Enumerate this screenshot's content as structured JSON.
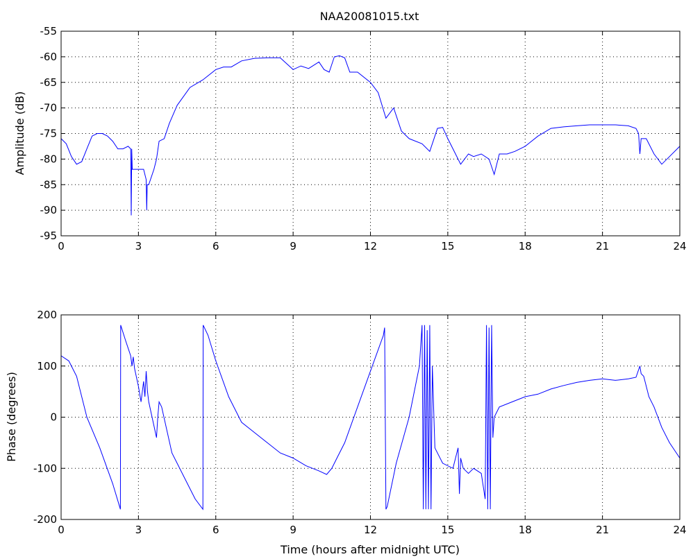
{
  "chart_data": [
    {
      "type": "line",
      "title": "NAA20081015.txt",
      "xlabel": "",
      "ylabel": "Amplitude (dB)",
      "xlim": [
        0,
        24
      ],
      "ylim": [
        -95,
        -55
      ],
      "xticks": [
        "0",
        "3",
        "6",
        "9",
        "12",
        "15",
        "18",
        "21",
        "24"
      ],
      "yticks": [
        "-55",
        "-60",
        "-65",
        "-70",
        "-75",
        "-80",
        "-85",
        "-90",
        "-95"
      ],
      "grid": true,
      "color": "#0000ff",
      "series": [
        {
          "x": [
            0,
            0.2,
            0.4,
            0.6,
            0.8,
            1.0,
            1.2,
            1.4,
            1.6,
            1.8,
            2.0,
            2.2,
            2.4,
            2.6,
            2.7,
            2.72,
            2.74,
            2.76,
            2.8,
            3.0,
            3.2,
            3.3,
            3.32,
            3.34,
            3.4,
            3.6,
            3.7,
            3.8,
            4.0,
            4.2,
            4.5,
            5.0,
            5.5,
            6.0,
            6.3,
            6.6,
            7.0,
            7.5,
            8.0,
            8.5,
            9.0,
            9.3,
            9.6,
            10.0,
            10.2,
            10.4,
            10.6,
            10.8,
            11.0,
            11.2,
            11.5,
            12.0,
            12.3,
            12.6,
            12.9,
            13.2,
            13.5,
            14.0,
            14.3,
            14.6,
            14.8,
            15.0,
            15.2,
            15.5,
            15.8,
            16.0,
            16.3,
            16.6,
            16.8,
            17.0,
            17.3,
            17.6,
            18.0,
            18.5,
            19.0,
            19.5,
            20.0,
            20.5,
            21.0,
            21.5,
            22.0,
            22.3,
            22.4,
            22.45,
            22.5,
            22.7,
            23.0,
            23.3,
            23.6,
            24.0
          ],
          "y": [
            -76,
            -77,
            -79.5,
            -81,
            -80.5,
            -78,
            -75.5,
            -75,
            -75,
            -75.5,
            -76.5,
            -78,
            -78,
            -77.5,
            -78,
            -91,
            -78,
            -82,
            -82,
            -82,
            -82,
            -84,
            -90,
            -85,
            -85,
            -82,
            -80,
            -76.5,
            -76,
            -73,
            -69.5,
            -66,
            -64.5,
            -62.5,
            -62,
            -62,
            -60.8,
            -60.3,
            -60.2,
            -60.2,
            -62.5,
            -61.8,
            -62.3,
            -61,
            -62.5,
            -63,
            -60,
            -59.8,
            -60.2,
            -63,
            -63,
            -65,
            -67,
            -72,
            -70,
            -74.5,
            -76,
            -77,
            -78.5,
            -74,
            -73.8,
            -76,
            -78,
            -81,
            -79,
            -79.5,
            -79,
            -80,
            -83,
            -79,
            -79,
            -78.5,
            -77.5,
            -75.5,
            -74,
            -73.7,
            -73.5,
            -73.3,
            -73.3,
            -73.3,
            -73.5,
            -74,
            -75,
            -79,
            -76,
            -76,
            -79,
            -81,
            -79.5,
            -77.5
          ]
        }
      ]
    },
    {
      "type": "line",
      "title": "",
      "xlabel": "Time (hours after midnight UTC)",
      "ylabel": "Phase (degrees)",
      "xlim": [
        0,
        24
      ],
      "ylim": [
        -200,
        200
      ],
      "xticks": [
        "0",
        "3",
        "6",
        "9",
        "12",
        "15",
        "18",
        "21",
        "24"
      ],
      "yticks": [
        "200",
        "100",
        "0",
        "-100",
        "-200"
      ],
      "grid": true,
      "color": "#0000ff",
      "series": [
        {
          "x": [
            0,
            0.3,
            0.6,
            1.0,
            1.5,
            2.0,
            2.3,
            2.31,
            2.5,
            2.7,
            2.75,
            2.8,
            2.85,
            3.0,
            3.1,
            3.2,
            3.25,
            3.3,
            3.35,
            3.4,
            3.7,
            3.75,
            3.8,
            3.9,
            4.3,
            4.8,
            5.2,
            5.5,
            5.51,
            5.7,
            6.0,
            6.5,
            7.0,
            7.5,
            8.0,
            8.5,
            9.0,
            9.5,
            10.0,
            10.3,
            10.5,
            10.7,
            11.0,
            11.5,
            12.0,
            12.5,
            12.55,
            12.6,
            12.65,
            13.0,
            13.5,
            13.9,
            14.0,
            14.05,
            14.1,
            14.15,
            14.2,
            14.25,
            14.3,
            14.35,
            14.4,
            14.5,
            14.8,
            15.2,
            15.4,
            15.45,
            15.5,
            15.6,
            15.8,
            16.0,
            16.3,
            16.45,
            16.5,
            16.55,
            16.6,
            16.65,
            16.7,
            16.75,
            16.8,
            17.0,
            17.5,
            18.0,
            18.5,
            19.0,
            19.5,
            20.0,
            20.5,
            21.0,
            21.5,
            22.0,
            22.3,
            22.45,
            22.5,
            22.6,
            22.8,
            23.0,
            23.3,
            23.6,
            24.0
          ],
          "y": [
            120,
            110,
            80,
            0,
            -60,
            -130,
            -180,
            180,
            150,
            120,
            100,
            118,
            95,
            60,
            30,
            70,
            40,
            90,
            50,
            30,
            -40,
            0,
            30,
            20,
            -70,
            -120,
            -160,
            -180,
            180,
            160,
            110,
            40,
            -10,
            -30,
            -50,
            -70,
            -80,
            -95,
            -105,
            -112,
            -100,
            -80,
            -50,
            20,
            90,
            160,
            175,
            -180,
            -175,
            -90,
            0,
            100,
            180,
            -180,
            180,
            -180,
            170,
            -180,
            180,
            -180,
            100,
            -60,
            -90,
            -100,
            -60,
            -150,
            -80,
            -100,
            -110,
            -100,
            -110,
            -160,
            180,
            -180,
            175,
            -180,
            180,
            -40,
            0,
            20,
            30,
            40,
            45,
            55,
            62,
            68,
            72,
            75,
            72,
            75,
            78,
            100,
            85,
            80,
            40,
            20,
            -20,
            -50,
            -80
          ]
        }
      ]
    }
  ]
}
